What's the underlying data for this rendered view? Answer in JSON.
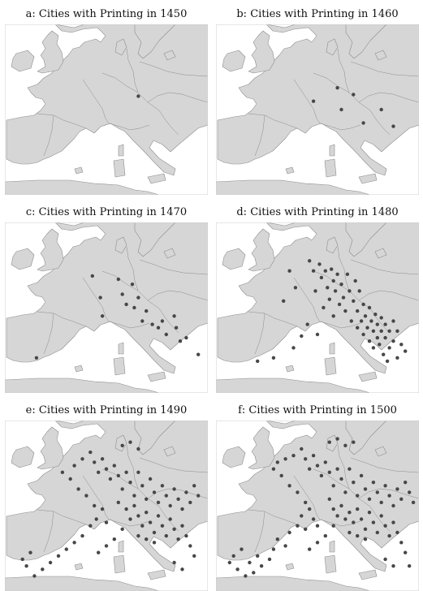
{
  "panels": [
    {
      "label": "a: Cities with Printing in 1450",
      "year": 1450,
      "cities": [
        [
          66,
          42
        ]
      ]
    },
    {
      "label": "b: Cities with Printing in 1460",
      "year": 1460,
      "cities": [
        [
          48,
          45
        ],
        [
          60,
          37
        ],
        [
          62,
          50
        ],
        [
          68,
          41
        ],
        [
          73,
          58
        ],
        [
          82,
          50
        ],
        [
          88,
          60
        ]
      ]
    },
    {
      "label": "c: Cities with Printing in 1470",
      "year": 1470,
      "cities": [
        [
          15,
          80
        ],
        [
          43,
          31
        ],
        [
          47,
          44
        ],
        [
          48,
          55
        ],
        [
          56,
          33
        ],
        [
          58,
          42
        ],
        [
          60,
          48
        ],
        [
          63,
          36
        ],
        [
          64,
          50
        ],
        [
          66,
          44
        ],
        [
          68,
          58
        ],
        [
          70,
          52
        ],
        [
          73,
          60
        ],
        [
          76,
          62
        ],
        [
          78,
          58
        ],
        [
          80,
          66
        ],
        [
          84,
          55
        ],
        [
          85,
          62
        ],
        [
          87,
          70
        ],
        [
          90,
          68
        ],
        [
          96,
          78
        ]
      ]
    },
    {
      "label": "d: Cities with Printing in 1480",
      "year": 1480,
      "cities": [
        [
          20,
          82
        ],
        [
          28,
          80
        ],
        [
          38,
          74
        ],
        [
          42,
          67
        ],
        [
          45,
          60
        ],
        [
          46,
          22
        ],
        [
          48,
          28
        ],
        [
          49,
          40
        ],
        [
          51,
          24
        ],
        [
          52,
          32
        ],
        [
          53,
          50
        ],
        [
          54,
          28
        ],
        [
          55,
          38
        ],
        [
          56,
          45
        ],
        [
          57,
          27
        ],
        [
          58,
          34
        ],
        [
          58,
          55
        ],
        [
          59,
          40
        ],
        [
          60,
          30
        ],
        [
          61,
          48
        ],
        [
          62,
          36
        ],
        [
          63,
          44
        ],
        [
          64,
          52
        ],
        [
          65,
          30
        ],
        [
          66,
          40
        ],
        [
          67,
          58
        ],
        [
          68,
          46
        ],
        [
          69,
          34
        ],
        [
          70,
          52
        ],
        [
          70,
          62
        ],
        [
          71,
          40
        ],
        [
          72,
          58
        ],
        [
          73,
          48
        ],
        [
          73,
          66
        ],
        [
          74,
          55
        ],
        [
          75,
          62
        ],
        [
          76,
          50
        ],
        [
          76,
          70
        ],
        [
          77,
          58
        ],
        [
          78,
          64
        ],
        [
          78,
          74
        ],
        [
          79,
          54
        ],
        [
          80,
          60
        ],
        [
          80,
          68
        ],
        [
          81,
          72
        ],
        [
          82,
          56
        ],
        [
          82,
          64
        ],
        [
          83,
          78
        ],
        [
          84,
          60
        ],
        [
          84,
          68
        ],
        [
          85,
          82
        ],
        [
          86,
          64
        ],
        [
          86,
          74
        ],
        [
          88,
          58
        ],
        [
          88,
          70
        ],
        [
          90,
          64
        ],
        [
          90,
          80
        ],
        [
          92,
          72
        ],
        [
          94,
          76
        ],
        [
          36,
          28
        ],
        [
          39,
          38
        ],
        [
          33,
          46
        ],
        [
          50,
          66
        ]
      ]
    },
    {
      "label": "e: Cities with Printing in 1490",
      "year": 1490,
      "cities": [
        [
          8,
          82
        ],
        [
          10,
          86
        ],
        [
          12,
          78
        ],
        [
          14,
          92
        ],
        [
          18,
          88
        ],
        [
          22,
          84
        ],
        [
          26,
          80
        ],
        [
          30,
          76
        ],
        [
          34,
          72
        ],
        [
          38,
          68
        ],
        [
          42,
          62
        ],
        [
          45,
          58
        ],
        [
          48,
          52
        ],
        [
          50,
          60
        ],
        [
          44,
          50
        ],
        [
          40,
          44
        ],
        [
          36,
          40
        ],
        [
          32,
          34
        ],
        [
          28,
          30
        ],
        [
          34,
          26
        ],
        [
          38,
          22
        ],
        [
          42,
          18
        ],
        [
          44,
          24
        ],
        [
          46,
          30
        ],
        [
          48,
          22
        ],
        [
          50,
          28
        ],
        [
          52,
          34
        ],
        [
          54,
          26
        ],
        [
          56,
          32
        ],
        [
          58,
          40
        ],
        [
          60,
          30
        ],
        [
          62,
          36
        ],
        [
          64,
          44
        ],
        [
          66,
          30
        ],
        [
          68,
          38
        ],
        [
          70,
          46
        ],
        [
          72,
          34
        ],
        [
          74,
          42
        ],
        [
          76,
          48
        ],
        [
          78,
          38
        ],
        [
          80,
          44
        ],
        [
          82,
          50
        ],
        [
          84,
          40
        ],
        [
          86,
          46
        ],
        [
          88,
          52
        ],
        [
          90,
          42
        ],
        [
          92,
          48
        ],
        [
          94,
          38
        ],
        [
          96,
          44
        ],
        [
          58,
          14
        ],
        [
          62,
          12
        ],
        [
          66,
          16
        ],
        [
          56,
          48
        ],
        [
          60,
          52
        ],
        [
          62,
          58
        ],
        [
          64,
          50
        ],
        [
          66,
          56
        ],
        [
          68,
          62
        ],
        [
          70,
          54
        ],
        [
          72,
          60
        ],
        [
          74,
          66
        ],
        [
          76,
          56
        ],
        [
          78,
          62
        ],
        [
          80,
          68
        ],
        [
          82,
          58
        ],
        [
          84,
          64
        ],
        [
          86,
          70
        ],
        [
          88,
          62
        ],
        [
          90,
          68
        ],
        [
          92,
          74
        ],
        [
          94,
          80
        ],
        [
          84,
          84
        ],
        [
          88,
          88
        ],
        [
          74,
          72
        ],
        [
          70,
          70
        ],
        [
          66,
          68
        ],
        [
          58,
          64
        ],
        [
          54,
          70
        ],
        [
          50,
          74
        ],
        [
          46,
          78
        ]
      ]
    },
    {
      "label": "f: Cities with Printing in 1500",
      "year": 1500,
      "cities": [
        [
          6,
          84
        ],
        [
          8,
          80
        ],
        [
          10,
          88
        ],
        [
          12,
          76
        ],
        [
          14,
          92
        ],
        [
          16,
          84
        ],
        [
          18,
          90
        ],
        [
          20,
          80
        ],
        [
          22,
          86
        ],
        [
          26,
          82
        ],
        [
          28,
          76
        ],
        [
          30,
          70
        ],
        [
          34,
          74
        ],
        [
          36,
          66
        ],
        [
          40,
          62
        ],
        [
          42,
          56
        ],
        [
          44,
          64
        ],
        [
          46,
          52
        ],
        [
          48,
          58
        ],
        [
          50,
          62
        ],
        [
          44,
          48
        ],
        [
          40,
          42
        ],
        [
          36,
          38
        ],
        [
          32,
          32
        ],
        [
          28,
          28
        ],
        [
          30,
          24
        ],
        [
          34,
          22
        ],
        [
          38,
          20
        ],
        [
          42,
          16
        ],
        [
          44,
          22
        ],
        [
          46,
          28
        ],
        [
          48,
          20
        ],
        [
          50,
          26
        ],
        [
          52,
          32
        ],
        [
          54,
          24
        ],
        [
          56,
          30
        ],
        [
          58,
          38
        ],
        [
          60,
          28
        ],
        [
          62,
          34
        ],
        [
          64,
          42
        ],
        [
          66,
          28
        ],
        [
          68,
          36
        ],
        [
          70,
          44
        ],
        [
          72,
          32
        ],
        [
          74,
          40
        ],
        [
          76,
          46
        ],
        [
          78,
          36
        ],
        [
          80,
          42
        ],
        [
          82,
          48
        ],
        [
          84,
          38
        ],
        [
          86,
          44
        ],
        [
          88,
          50
        ],
        [
          90,
          40
        ],
        [
          92,
          46
        ],
        [
          94,
          36
        ],
        [
          96,
          42
        ],
        [
          98,
          48
        ],
        [
          56,
          12
        ],
        [
          60,
          10
        ],
        [
          64,
          14
        ],
        [
          68,
          12
        ],
        [
          56,
          46
        ],
        [
          58,
          52
        ],
        [
          60,
          56
        ],
        [
          62,
          50
        ],
        [
          64,
          58
        ],
        [
          66,
          54
        ],
        [
          68,
          60
        ],
        [
          70,
          52
        ],
        [
          72,
          58
        ],
        [
          74,
          64
        ],
        [
          76,
          54
        ],
        [
          78,
          60
        ],
        [
          80,
          66
        ],
        [
          82,
          56
        ],
        [
          84,
          62
        ],
        [
          86,
          68
        ],
        [
          88,
          60
        ],
        [
          90,
          66
        ],
        [
          92,
          72
        ],
        [
          94,
          78
        ],
        [
          84,
          82
        ],
        [
          88,
          86
        ],
        [
          74,
          70
        ],
        [
          70,
          68
        ],
        [
          66,
          66
        ],
        [
          58,
          62
        ],
        [
          54,
          68
        ],
        [
          50,
          72
        ],
        [
          46,
          76
        ],
        [
          96,
          86
        ]
      ]
    }
  ]
}
